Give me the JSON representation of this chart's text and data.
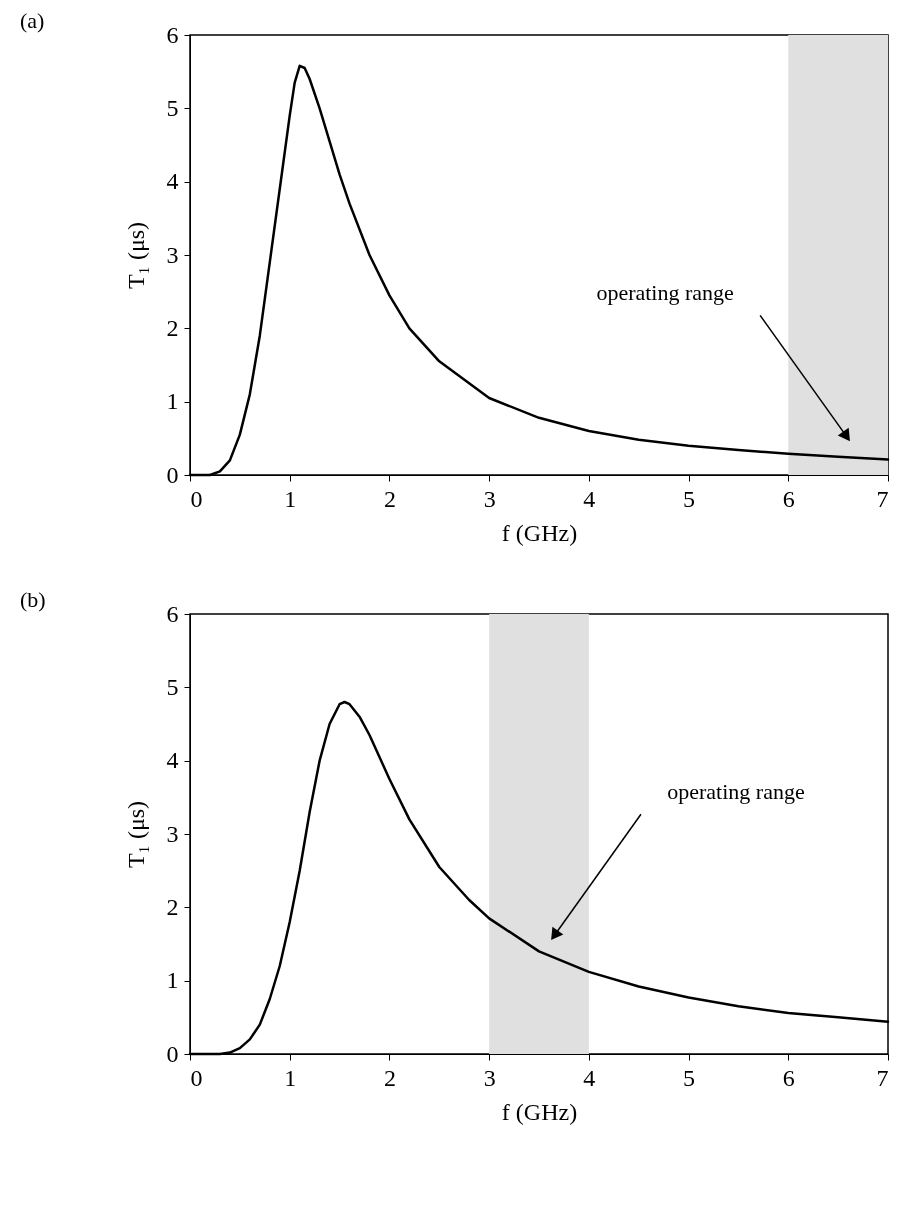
{
  "chart_data": [
    {
      "type": "line",
      "title": "(a)",
      "xlabel": "f (GHz)",
      "ylabel": "T₁ (μs)",
      "xlim": [
        0,
        7
      ],
      "ylim": [
        0,
        6
      ],
      "xticks": [
        0,
        1,
        2,
        3,
        4,
        5,
        6,
        7
      ],
      "yticks": [
        0,
        1,
        2,
        3,
        4,
        5,
        6
      ],
      "line_style": "solid",
      "series": [
        {
          "color": "#000000",
          "x": [
            0,
            0.2,
            0.3,
            0.4,
            0.5,
            0.6,
            0.7,
            0.8,
            0.9,
            1.0,
            1.05,
            1.1,
            1.15,
            1.2,
            1.3,
            1.4,
            1.5,
            1.6,
            1.8,
            2.0,
            2.2,
            2.5,
            3.0,
            3.5,
            4.0,
            4.5,
            5.0,
            5.5,
            6.0,
            6.5,
            7.0
          ],
          "values": [
            0,
            0,
            0.05,
            0.2,
            0.55,
            1.1,
            1.9,
            2.9,
            3.9,
            4.9,
            5.35,
            5.58,
            5.55,
            5.4,
            5.0,
            4.55,
            4.1,
            3.7,
            3.0,
            2.45,
            2.0,
            1.55,
            1.05,
            0.78,
            0.6,
            0.48,
            0.4,
            0.34,
            0.29,
            0.25,
            0.21
          ]
        }
      ],
      "bands": [
        {
          "axis": "x",
          "from": 6,
          "to": 7,
          "color": "#e0e0e0"
        }
      ],
      "annotations": [
        "operating range"
      ]
    },
    {
      "type": "line",
      "title": "(b)",
      "xlabel": "f (GHz)",
      "ylabel": "T₁ (μs)",
      "xlim": [
        0,
        7
      ],
      "ylim": [
        0,
        6
      ],
      "xticks": [
        0,
        1,
        2,
        3,
        4,
        5,
        6,
        7
      ],
      "yticks": [
        0,
        1,
        2,
        3,
        4,
        5,
        6
      ],
      "line_style": "solid",
      "series": [
        {
          "color": "#000000",
          "x": [
            0,
            0.3,
            0.4,
            0.5,
            0.6,
            0.7,
            0.8,
            0.9,
            1.0,
            1.1,
            1.2,
            1.3,
            1.4,
            1.5,
            1.55,
            1.6,
            1.7,
            1.8,
            2.0,
            2.2,
            2.5,
            2.8,
            3.0,
            3.5,
            4.0,
            4.5,
            5.0,
            5.5,
            6.0,
            6.5,
            7.0
          ],
          "values": [
            0,
            0,
            0.02,
            0.08,
            0.2,
            0.4,
            0.75,
            1.2,
            1.8,
            2.5,
            3.3,
            4.0,
            4.5,
            4.77,
            4.8,
            4.77,
            4.6,
            4.35,
            3.75,
            3.2,
            2.55,
            2.1,
            1.85,
            1.4,
            1.12,
            0.92,
            0.77,
            0.65,
            0.56,
            0.5,
            0.44
          ]
        }
      ],
      "bands": [
        {
          "axis": "x",
          "from": 3,
          "to": 4,
          "color": "#e0e0e0"
        }
      ],
      "annotations": [
        "operating range"
      ]
    }
  ]
}
